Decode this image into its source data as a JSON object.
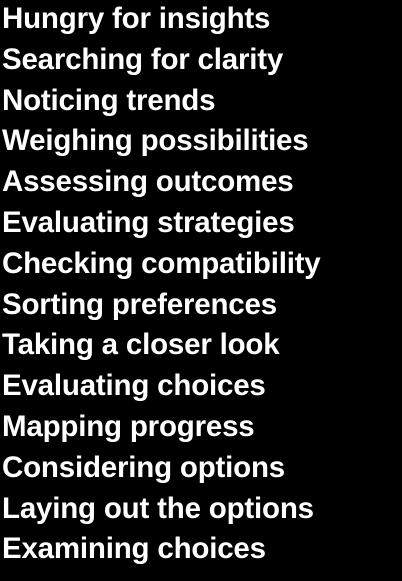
{
  "status_messages": [
    "Hungry for insights",
    "Searching for clarity",
    "Noticing trends",
    "Weighing possibilities",
    "Assessing outcomes",
    "Evaluating strategies",
    "Checking compatibility",
    "Sorting preferences",
    "Taking a closer look",
    "Evaluating choices",
    "Mapping progress",
    "Considering options",
    "Laying out the options",
    "Examining choices"
  ],
  "colors": {
    "background": "#000000",
    "text": "#ffffff"
  }
}
